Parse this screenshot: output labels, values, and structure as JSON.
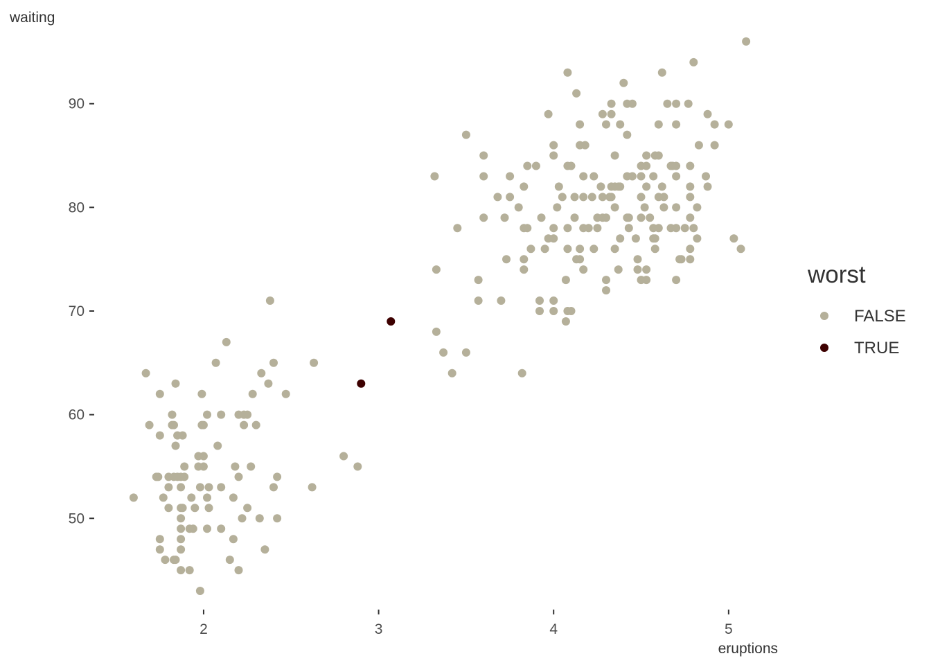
{
  "chart_data": {
    "type": "scatter",
    "xlabel": "eruptions",
    "ylabel": "waiting",
    "xlim": [
      1.45,
      5.25
    ],
    "ylim": [
      42,
      98
    ],
    "x_ticks": [
      2,
      3,
      4,
      5
    ],
    "y_ticks": [
      50,
      60,
      70,
      80,
      90
    ],
    "grid": false,
    "legend": {
      "title": "worst",
      "position": "right",
      "entries": [
        {
          "label": "FALSE",
          "color": "#b5b09a"
        },
        {
          "label": "TRUE",
          "color": "#3d0000"
        }
      ]
    },
    "series": [
      {
        "name": "FALSE",
        "color": "#b5b09a",
        "points": [
          [
            1.6,
            52
          ],
          [
            1.67,
            64
          ],
          [
            1.69,
            59
          ],
          [
            1.73,
            54
          ],
          [
            1.74,
            54
          ],
          [
            1.75,
            58
          ],
          [
            1.75,
            62
          ],
          [
            1.75,
            48
          ],
          [
            1.75,
            47
          ],
          [
            1.77,
            52
          ],
          [
            1.78,
            46
          ],
          [
            1.8,
            54
          ],
          [
            1.8,
            53
          ],
          [
            1.8,
            51
          ],
          [
            1.82,
            60
          ],
          [
            1.82,
            59
          ],
          [
            1.83,
            59
          ],
          [
            1.83,
            46
          ],
          [
            1.83,
            54
          ],
          [
            1.84,
            46
          ],
          [
            1.84,
            57
          ],
          [
            1.84,
            63
          ],
          [
            1.85,
            54
          ],
          [
            1.85,
            58
          ],
          [
            1.87,
            54
          ],
          [
            1.87,
            53
          ],
          [
            1.87,
            51
          ],
          [
            1.87,
            50
          ],
          [
            1.87,
            49
          ],
          [
            1.87,
            48
          ],
          [
            1.87,
            47
          ],
          [
            1.87,
            45
          ],
          [
            1.88,
            58
          ],
          [
            1.88,
            51
          ],
          [
            1.89,
            55
          ],
          [
            1.89,
            54
          ],
          [
            1.92,
            49
          ],
          [
            1.92,
            45
          ],
          [
            1.93,
            52
          ],
          [
            1.94,
            49
          ],
          [
            1.95,
            51
          ],
          [
            1.97,
            56
          ],
          [
            1.97,
            55
          ],
          [
            1.98,
            53
          ],
          [
            1.98,
            43
          ],
          [
            1.99,
            62
          ],
          [
            1.99,
            59
          ],
          [
            2.0,
            59
          ],
          [
            2.0,
            56
          ],
          [
            2.0,
            55
          ],
          [
            2.02,
            60
          ],
          [
            2.02,
            52
          ],
          [
            2.02,
            49
          ],
          [
            2.03,
            53
          ],
          [
            2.03,
            51
          ],
          [
            2.07,
            65
          ],
          [
            2.08,
            57
          ],
          [
            2.1,
            60
          ],
          [
            2.1,
            53
          ],
          [
            2.1,
            49
          ],
          [
            2.13,
            67
          ],
          [
            2.15,
            46
          ],
          [
            2.17,
            52
          ],
          [
            2.17,
            48
          ],
          [
            2.18,
            55
          ],
          [
            2.2,
            60
          ],
          [
            2.2,
            54
          ],
          [
            2.2,
            45
          ],
          [
            2.22,
            50
          ],
          [
            2.23,
            60
          ],
          [
            2.23,
            59
          ],
          [
            2.25,
            60
          ],
          [
            2.25,
            51
          ],
          [
            2.27,
            55
          ],
          [
            2.28,
            62
          ],
          [
            2.3,
            59
          ],
          [
            2.32,
            50
          ],
          [
            2.33,
            64
          ],
          [
            2.35,
            47
          ],
          [
            2.37,
            63
          ],
          [
            2.38,
            71
          ],
          [
            2.4,
            53
          ],
          [
            2.4,
            65
          ],
          [
            2.42,
            54
          ],
          [
            2.42,
            50
          ],
          [
            2.47,
            62
          ],
          [
            2.62,
            53
          ],
          [
            2.63,
            65
          ],
          [
            2.8,
            56
          ],
          [
            2.88,
            55
          ],
          [
            3.32,
            83
          ],
          [
            3.33,
            74
          ],
          [
            3.33,
            68
          ],
          [
            3.37,
            66
          ],
          [
            3.42,
            64
          ],
          [
            3.45,
            78
          ],
          [
            3.5,
            66
          ],
          [
            3.5,
            87
          ],
          [
            3.57,
            73
          ],
          [
            3.57,
            71
          ],
          [
            3.6,
            85
          ],
          [
            3.6,
            83
          ],
          [
            3.6,
            79
          ],
          [
            3.68,
            81
          ],
          [
            3.7,
            71
          ],
          [
            3.72,
            79
          ],
          [
            3.73,
            75
          ],
          [
            3.75,
            83
          ],
          [
            3.75,
            81
          ],
          [
            3.8,
            80
          ],
          [
            3.82,
            64
          ],
          [
            3.83,
            82
          ],
          [
            3.83,
            78
          ],
          [
            3.83,
            75
          ],
          [
            3.83,
            74
          ],
          [
            3.85,
            84
          ],
          [
            3.85,
            78
          ],
          [
            3.87,
            76
          ],
          [
            3.9,
            84
          ],
          [
            3.92,
            71
          ],
          [
            3.92,
            70
          ],
          [
            3.93,
            79
          ],
          [
            3.95,
            76
          ],
          [
            3.97,
            89
          ],
          [
            3.97,
            77
          ],
          [
            4.0,
            86
          ],
          [
            4.0,
            85
          ],
          [
            4.0,
            78
          ],
          [
            4.0,
            77
          ],
          [
            4.0,
            71
          ],
          [
            4.0,
            70
          ],
          [
            4.02,
            80
          ],
          [
            4.03,
            82
          ],
          [
            4.05,
            81
          ],
          [
            4.07,
            73
          ],
          [
            4.07,
            69
          ],
          [
            4.08,
            93
          ],
          [
            4.08,
            84
          ],
          [
            4.08,
            78
          ],
          [
            4.08,
            76
          ],
          [
            4.08,
            70
          ],
          [
            4.1,
            84
          ],
          [
            4.1,
            70
          ],
          [
            4.12,
            81
          ],
          [
            4.12,
            79
          ],
          [
            4.13,
            91
          ],
          [
            4.13,
            75
          ],
          [
            4.15,
            88
          ],
          [
            4.15,
            86
          ],
          [
            4.15,
            76
          ],
          [
            4.15,
            75
          ],
          [
            4.17,
            83
          ],
          [
            4.17,
            81
          ],
          [
            4.17,
            78
          ],
          [
            4.17,
            74
          ],
          [
            4.18,
            86
          ],
          [
            4.2,
            78
          ],
          [
            4.22,
            81
          ],
          [
            4.23,
            76
          ],
          [
            4.23,
            83
          ],
          [
            4.25,
            79
          ],
          [
            4.25,
            78
          ],
          [
            4.27,
            82
          ],
          [
            4.28,
            89
          ],
          [
            4.28,
            81
          ],
          [
            4.28,
            79
          ],
          [
            4.3,
            88
          ],
          [
            4.3,
            79
          ],
          [
            4.3,
            73
          ],
          [
            4.3,
            72
          ],
          [
            4.32,
            81
          ],
          [
            4.33,
            90
          ],
          [
            4.33,
            89
          ],
          [
            4.33,
            82
          ],
          [
            4.33,
            81
          ],
          [
            4.35,
            85
          ],
          [
            4.35,
            82
          ],
          [
            4.35,
            80
          ],
          [
            4.35,
            76
          ],
          [
            4.37,
            82
          ],
          [
            4.37,
            74
          ],
          [
            4.38,
            88
          ],
          [
            4.38,
            82
          ],
          [
            4.38,
            77
          ],
          [
            4.4,
            92
          ],
          [
            4.42,
            87
          ],
          [
            4.42,
            83
          ],
          [
            4.42,
            79
          ],
          [
            4.42,
            90
          ],
          [
            4.43,
            79
          ],
          [
            4.43,
            78
          ],
          [
            4.45,
            90
          ],
          [
            4.45,
            83
          ],
          [
            4.47,
            77
          ],
          [
            4.48,
            75
          ],
          [
            4.48,
            74
          ],
          [
            4.5,
            84
          ],
          [
            4.5,
            83
          ],
          [
            4.5,
            81
          ],
          [
            4.5,
            79
          ],
          [
            4.5,
            73
          ],
          [
            4.52,
            80
          ],
          [
            4.53,
            84
          ],
          [
            4.53,
            82
          ],
          [
            4.53,
            74
          ],
          [
            4.53,
            73
          ],
          [
            4.53,
            85
          ],
          [
            4.55,
            79
          ],
          [
            4.57,
            83
          ],
          [
            4.57,
            78
          ],
          [
            4.57,
            77
          ],
          [
            4.58,
            85
          ],
          [
            4.58,
            77
          ],
          [
            4.58,
            76
          ],
          [
            4.6,
            85
          ],
          [
            4.6,
            88
          ],
          [
            4.6,
            81
          ],
          [
            4.6,
            78
          ],
          [
            4.62,
            93
          ],
          [
            4.62,
            82
          ],
          [
            4.63,
            81
          ],
          [
            4.63,
            80
          ],
          [
            4.65,
            90
          ],
          [
            4.67,
            84
          ],
          [
            4.67,
            78
          ],
          [
            4.68,
            84
          ],
          [
            4.7,
            90
          ],
          [
            4.7,
            88
          ],
          [
            4.7,
            84
          ],
          [
            4.7,
            83
          ],
          [
            4.7,
            80
          ],
          [
            4.7,
            78
          ],
          [
            4.7,
            73
          ],
          [
            4.72,
            75
          ],
          [
            4.73,
            75
          ],
          [
            4.75,
            78
          ],
          [
            4.77,
            90
          ],
          [
            4.78,
            84
          ],
          [
            4.78,
            82
          ],
          [
            4.78,
            81
          ],
          [
            4.78,
            79
          ],
          [
            4.78,
            76
          ],
          [
            4.78,
            75
          ],
          [
            4.8,
            94
          ],
          [
            4.8,
            78
          ],
          [
            4.82,
            77
          ],
          [
            4.82,
            80
          ],
          [
            4.83,
            86
          ],
          [
            4.87,
            83
          ],
          [
            4.88,
            89
          ],
          [
            4.88,
            82
          ],
          [
            4.92,
            88
          ],
          [
            4.92,
            86
          ],
          [
            5.0,
            88
          ],
          [
            5.03,
            77
          ],
          [
            5.07,
            76
          ],
          [
            5.1,
            96
          ]
        ]
      },
      {
        "name": "TRUE",
        "color": "#3d0000",
        "points": [
          [
            2.9,
            63
          ],
          [
            3.07,
            69
          ]
        ]
      }
    ]
  }
}
